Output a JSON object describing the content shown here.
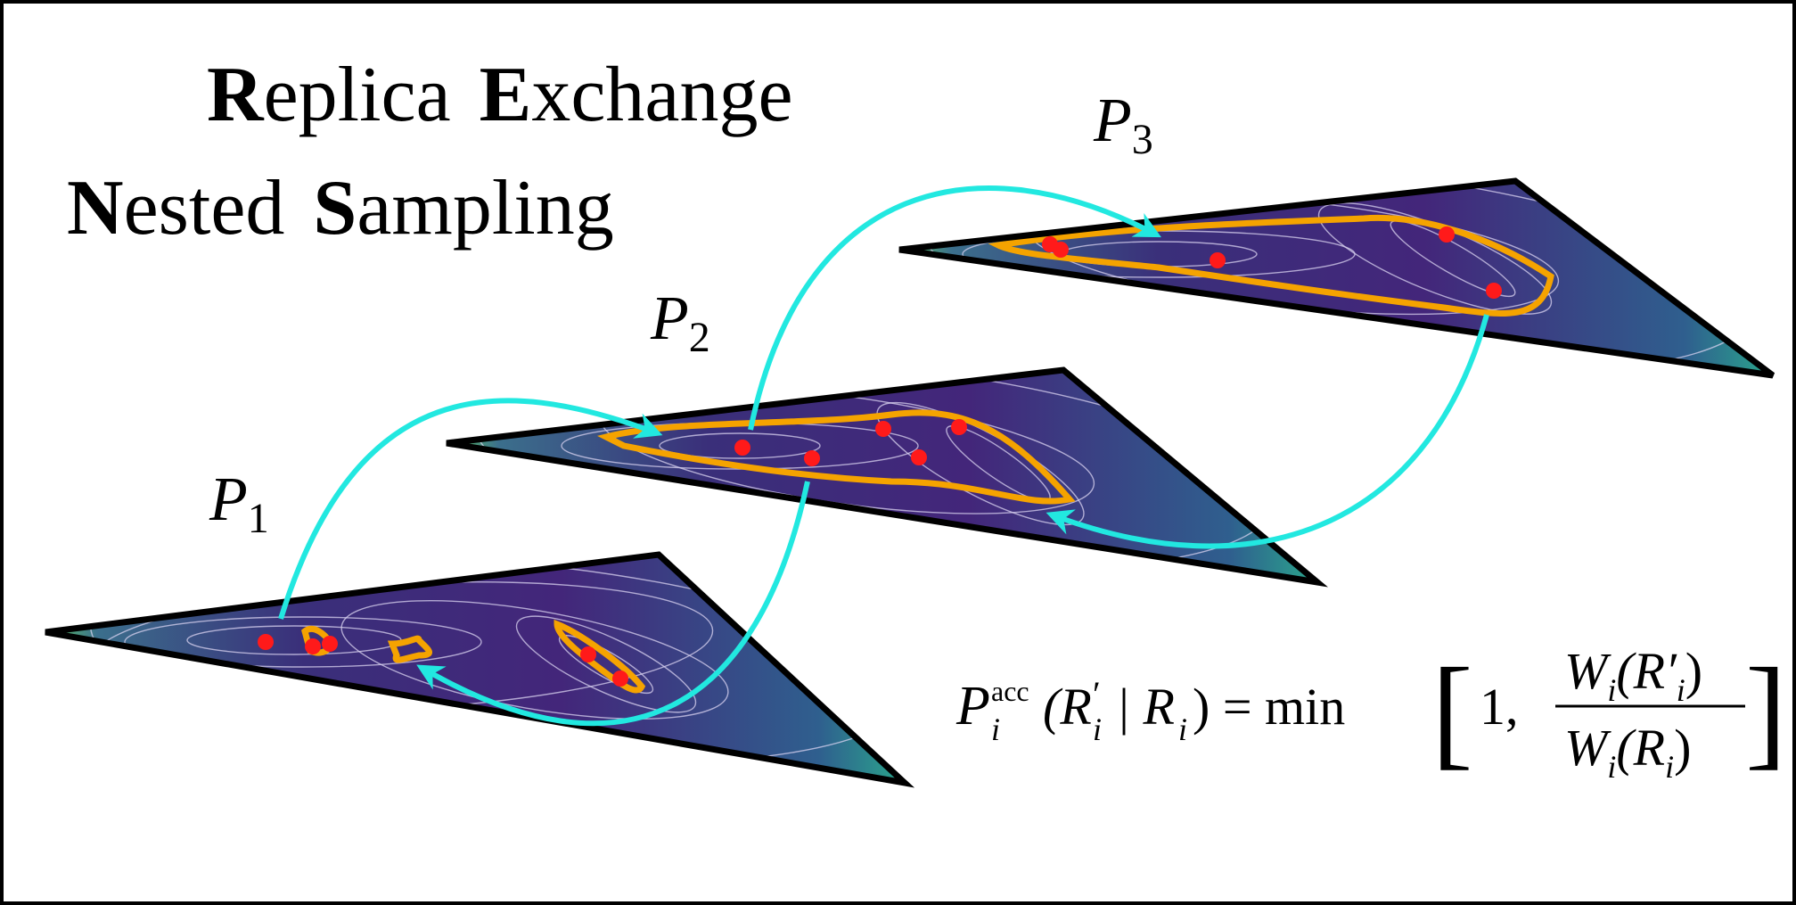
{
  "title": {
    "line1": [
      {
        "bold": "R",
        "rest": "eplica"
      },
      {
        "bold": "E",
        "rest": "xchange"
      }
    ],
    "line2": [
      {
        "bold": "N",
        "rest": "ested"
      },
      {
        "bold": "S",
        "rest": "ampling"
      }
    ]
  },
  "labels": [
    {
      "symbol": "P",
      "subscript": "1"
    },
    {
      "symbol": "P",
      "subscript": "2"
    },
    {
      "symbol": "P",
      "subscript": "3"
    }
  ],
  "equation": {
    "symbol": "P",
    "superscript": "acc",
    "subscript": "i",
    "open": "(R",
    "prime": "′",
    "arg_sub": "i",
    "given": "| R",
    "given_sub": "i",
    "close": ") = min",
    "bracket_open": "[",
    "one": "1,",
    "numerator": {
      "w": "W",
      "w_sub": "i",
      "arg": "(R′",
      "arg_sub": "i",
      "close": ")"
    },
    "denominator": {
      "w": "W",
      "w_sub": "i",
      "arg": "(R",
      "arg_sub": "i",
      "close": ")"
    },
    "bracket_close": "]"
  }
}
